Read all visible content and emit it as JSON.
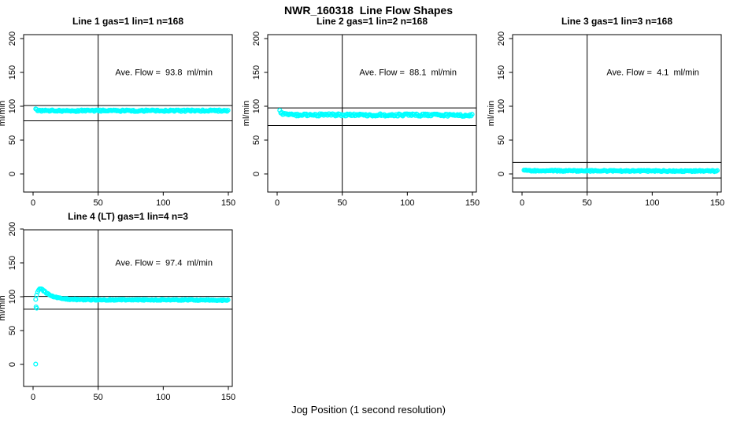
{
  "figure": {
    "title": "NWR_160318  Line Flow Shapes",
    "xlabel": "Jog Position (1 second resolution)",
    "background": "#ffffff",
    "point_color": "#00ffff",
    "line_color": "#000000"
  },
  "chart_data": [
    {
      "type": "scatter",
      "title": "Line 1 gas=1 lin=1 n=168",
      "n": 168,
      "ave_flow": 93.8,
      "annotation": "Ave. Flow =  93.8  ml/min",
      "ylabel": "ml/min",
      "x_ticks": [
        0,
        50,
        100,
        150
      ],
      "y_ticks": [
        0,
        50,
        100,
        150,
        200
      ],
      "xlim": [
        -7,
        153
      ],
      "ylim": [
        -27,
        206
      ],
      "vline_x": 50,
      "hlines": [
        101,
        78.5
      ],
      "profile": [
        [
          2,
          96
        ],
        [
          3,
          93.8
        ],
        [
          6,
          93.4
        ],
        [
          150,
          93.4
        ]
      ],
      "jitter": 1.2,
      "x_step": 0.75,
      "extra_points": []
    },
    {
      "type": "scatter",
      "title": "Line 2 gas=1 lin=2 n=168",
      "n": 168,
      "ave_flow": 88.1,
      "annotation": "Ave. Flow =  88.1  ml/min",
      "ylabel": "ml/min",
      "x_ticks": [
        0,
        50,
        100,
        150
      ],
      "y_ticks": [
        0,
        50,
        100,
        150,
        200
      ],
      "xlim": [
        -7,
        153
      ],
      "ylim": [
        -27,
        206
      ],
      "vline_x": 50,
      "hlines": [
        97.5,
        71.5
      ],
      "profile": [
        [
          2,
          94.5
        ],
        [
          3,
          90
        ],
        [
          5,
          88
        ],
        [
          10,
          87.3
        ],
        [
          150,
          86.8
        ]
      ],
      "jitter": 1.8,
      "x_step": 0.75,
      "extra_points": []
    },
    {
      "type": "scatter",
      "title": "Line 3 gas=1 lin=3 n=168",
      "n": 168,
      "ave_flow": 4.1,
      "annotation": "Ave. Flow =  4.1  ml/min",
      "ylabel": "ml/min",
      "x_ticks": [
        0,
        50,
        100,
        150
      ],
      "y_ticks": [
        0,
        50,
        100,
        150,
        200
      ],
      "xlim": [
        -7,
        153
      ],
      "ylim": [
        -27,
        206
      ],
      "vline_x": 50,
      "hlines": [
        17,
        -6
      ],
      "profile": [
        [
          1.5,
          5
        ],
        [
          40,
          4.5
        ],
        [
          150,
          4.2
        ]
      ],
      "jitter": 0.9,
      "x_step": 0.75,
      "extra_points": []
    },
    {
      "type": "scatter",
      "title": "Line 4 (LT) gas=1 lin=4 n=3",
      "n": 3,
      "ave_flow": 97.4,
      "annotation": "Ave. Flow =  97.4  ml/min",
      "ylabel": "ml/min",
      "x_ticks": [
        0,
        50,
        100,
        150
      ],
      "y_ticks": [
        0,
        50,
        100,
        150,
        200
      ],
      "xlim": [
        -7,
        153
      ],
      "ylim": [
        -27,
        206
      ],
      "vline_x": 50,
      "hlines": [
        100.5,
        81.5
      ],
      "profile": [
        [
          2,
          96
        ],
        [
          3,
          104
        ],
        [
          4,
          109
        ],
        [
          5,
          112
        ],
        [
          6,
          112
        ],
        [
          8,
          109
        ],
        [
          10,
          106
        ],
        [
          13,
          102
        ],
        [
          16,
          100
        ],
        [
          20,
          98
        ],
        [
          25,
          96.8
        ],
        [
          30,
          96
        ],
        [
          40,
          95.6
        ],
        [
          60,
          95.4
        ],
        [
          90,
          95.4
        ],
        [
          120,
          95.2
        ],
        [
          150,
          94.8
        ]
      ],
      "jitter": 0.8,
      "x_step": 0.75,
      "extra_points": [
        [
          2,
          0.5
        ],
        [
          2.3,
          85
        ],
        [
          2.8,
          83
        ]
      ]
    }
  ]
}
